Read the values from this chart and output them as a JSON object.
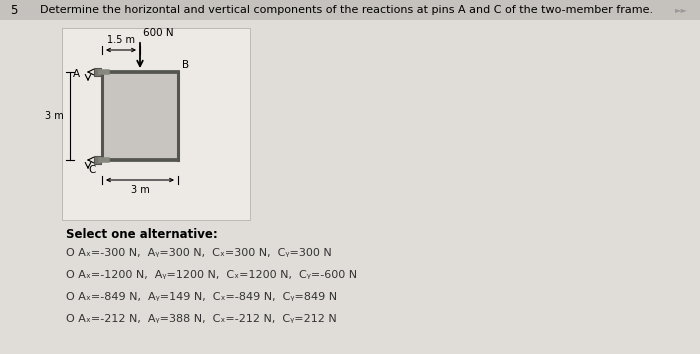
{
  "question_number": "5",
  "title": "Determine the horizontal and vertical components of the reactions at pins A and C of the two-member frame.",
  "bg_color": "#cccac6",
  "panel_color": "#e0ddd8",
  "diagram_bg": "#ede9e4",
  "select_text": "Select one alternative:",
  "options": [
    "O Aₓ=-300 N,  Aᵧ=300 N,  Cₓ=300 N,  Cᵧ=300 N",
    "O Aₓ=-1200 N,  Aᵧ=1200 N,  Cₓ=1200 N,  Cᵧ=-600 N",
    "O Aₓ=-849 N,  Aᵧ=149 N,  Cₓ=-849 N,  Cᵧ=849 N",
    "O Aₓ=-212 N,  Aᵧ=388 N,  Cₓ=-212 N,  Cᵧ=212 N"
  ],
  "load_label": "600 N",
  "dim_horiz": "1.5 m",
  "dim_vert": "3 m",
  "dim_bottom": "3 m",
  "pin_A": "A",
  "pin_C": "C",
  "point_B": "B",
  "frame_color": "#888880",
  "member_color": "#999990",
  "pin_color": "#666660"
}
